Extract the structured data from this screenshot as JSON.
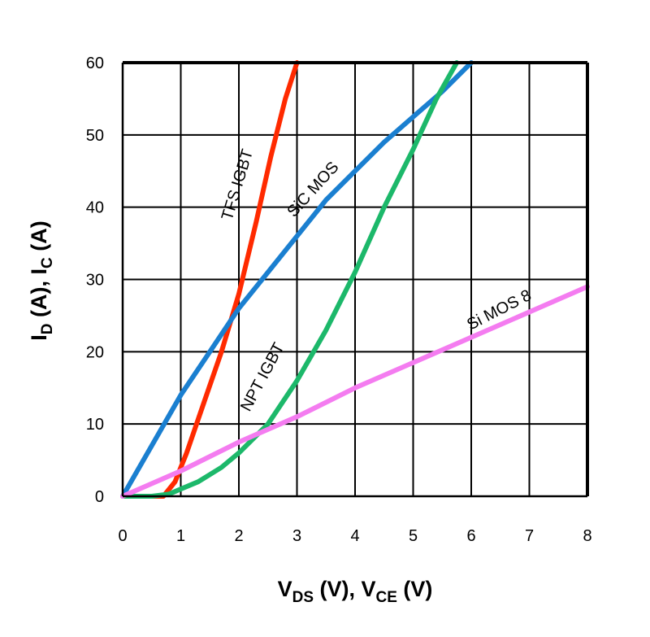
{
  "chart_data": {
    "type": "line",
    "xlabel": {
      "main1": "V",
      "sub1": "DS",
      "mid": " (V), V",
      "sub2": "CE",
      "tail": " (V)"
    },
    "ylabel": {
      "main1": "I",
      "sub1": "D",
      "mid": " (A), I",
      "sub2": "C",
      "tail": " (A)"
    },
    "xlim": [
      0,
      8
    ],
    "ylim": [
      0,
      60
    ],
    "x_ticks": [
      "0",
      "1",
      "2",
      "3",
      "4",
      "5",
      "6",
      "7",
      "8"
    ],
    "y_ticks": [
      "0",
      "10",
      "20",
      "30",
      "40",
      "50",
      "60"
    ],
    "grid": true,
    "series": [
      {
        "name": "TFS IGBT",
        "color": "#ff2a00",
        "points": [
          [
            0,
            0
          ],
          [
            0.7,
            0
          ],
          [
            0.9,
            2
          ],
          [
            1.1,
            6
          ],
          [
            1.4,
            13
          ],
          [
            1.7,
            20
          ],
          [
            2.0,
            28
          ],
          [
            2.3,
            38
          ],
          [
            2.55,
            47
          ],
          [
            2.8,
            55
          ],
          [
            3.0,
            60
          ]
        ]
      },
      {
        "name": "SiC MOS",
        "color": "#1a7fd0",
        "points": [
          [
            0,
            0
          ],
          [
            0.5,
            7
          ],
          [
            1.0,
            14
          ],
          [
            1.5,
            20
          ],
          [
            2.0,
            26
          ],
          [
            2.5,
            31
          ],
          [
            3.0,
            36
          ],
          [
            3.5,
            41
          ],
          [
            4.0,
            45
          ],
          [
            4.5,
            49
          ],
          [
            5.0,
            52.5
          ],
          [
            5.5,
            56
          ],
          [
            6.0,
            60
          ]
        ]
      },
      {
        "name": "NPT IGBT",
        "color": "#1cb86a",
        "points": [
          [
            0,
            0
          ],
          [
            0.5,
            0
          ],
          [
            0.8,
            0.3
          ],
          [
            1.0,
            1
          ],
          [
            1.3,
            2
          ],
          [
            1.7,
            4
          ],
          [
            2.0,
            6
          ],
          [
            2.5,
            10
          ],
          [
            3.0,
            16
          ],
          [
            3.5,
            23
          ],
          [
            4.0,
            31
          ],
          [
            4.5,
            40
          ],
          [
            5.0,
            48
          ],
          [
            5.4,
            55
          ],
          [
            5.75,
            60
          ]
        ]
      },
      {
        "name": "Si MOS 8",
        "color": "#f47cf0",
        "points": [
          [
            0,
            0
          ],
          [
            1,
            3.5
          ],
          [
            2,
            7.5
          ],
          [
            3,
            11
          ],
          [
            4,
            15
          ],
          [
            5,
            18.5
          ],
          [
            6,
            22
          ],
          [
            7,
            25.5
          ],
          [
            8,
            29
          ]
        ]
      }
    ]
  }
}
